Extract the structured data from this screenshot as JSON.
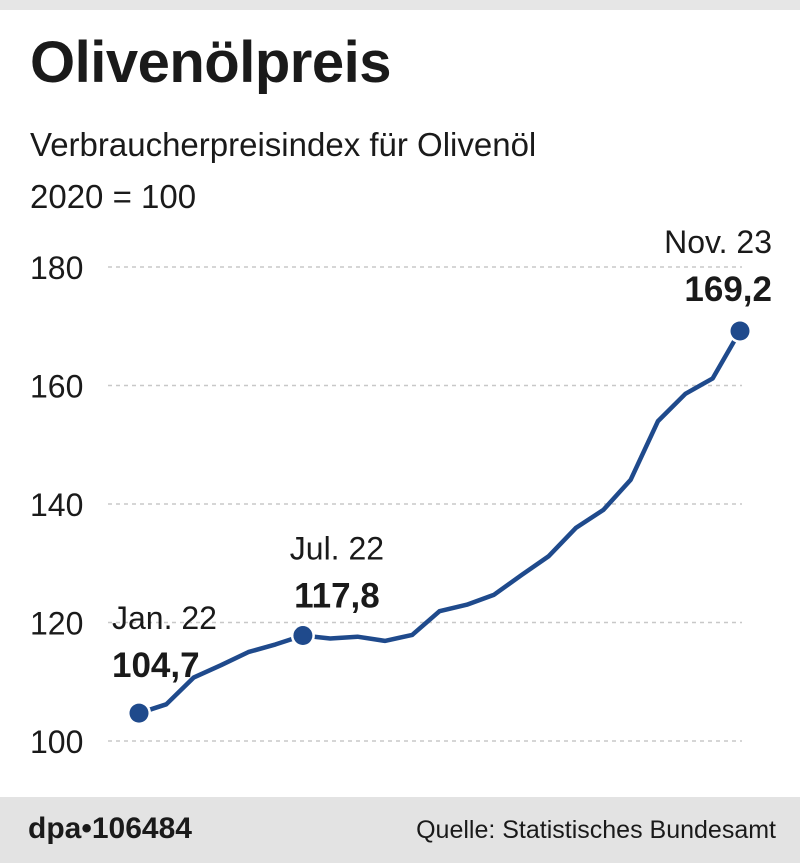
{
  "header": {
    "title": "Olivenölpreis",
    "subtitle": "Verbraucherpreisindex für Olivenöl",
    "subtitle2": "2020 = 100"
  },
  "footer": {
    "agency": "dpa•106484",
    "source": "Quelle: Statistisches Bundesamt"
  },
  "colors": {
    "line": "#1f4a8c",
    "grid": "#c8c8c8",
    "footer_bg": "#e3e3e3"
  },
  "chart_data": {
    "type": "line",
    "title": "Olivenölpreis",
    "subtitle": "Verbraucherpreisindex für Olivenöl",
    "ylabel": "2020 = 100",
    "ylim": [
      100,
      180
    ],
    "yticks": [
      100,
      120,
      140,
      160,
      180
    ],
    "grid": true,
    "x": [
      "2022-01",
      "2022-02",
      "2022-03",
      "2022-04",
      "2022-05",
      "2022-06",
      "2022-07",
      "2022-08",
      "2022-09",
      "2022-10",
      "2022-11",
      "2022-12",
      "2023-01",
      "2023-02",
      "2023-03",
      "2023-04",
      "2023-05",
      "2023-06",
      "2023-07",
      "2023-08",
      "2023-09",
      "2023-10",
      "2023-11"
    ],
    "series": [
      {
        "values": [
          104.7,
          106.2,
          110.7,
          112.8,
          115.0,
          116.3,
          117.8,
          117.3,
          117.6,
          116.9,
          117.9,
          121.9,
          123.0,
          124.7,
          128.0,
          131.2,
          136.0,
          139.0,
          144.1,
          154.0,
          158.6,
          161.2,
          169.2
        ]
      }
    ],
    "annotations": [
      {
        "x": "2022-01",
        "label": "Jan. 22",
        "value": "104,7"
      },
      {
        "x": "2022-07",
        "label": "Jul. 22",
        "value": "117,8"
      },
      {
        "x": "2023-11",
        "label": "Nov. 23",
        "value": "169,2"
      }
    ]
  }
}
